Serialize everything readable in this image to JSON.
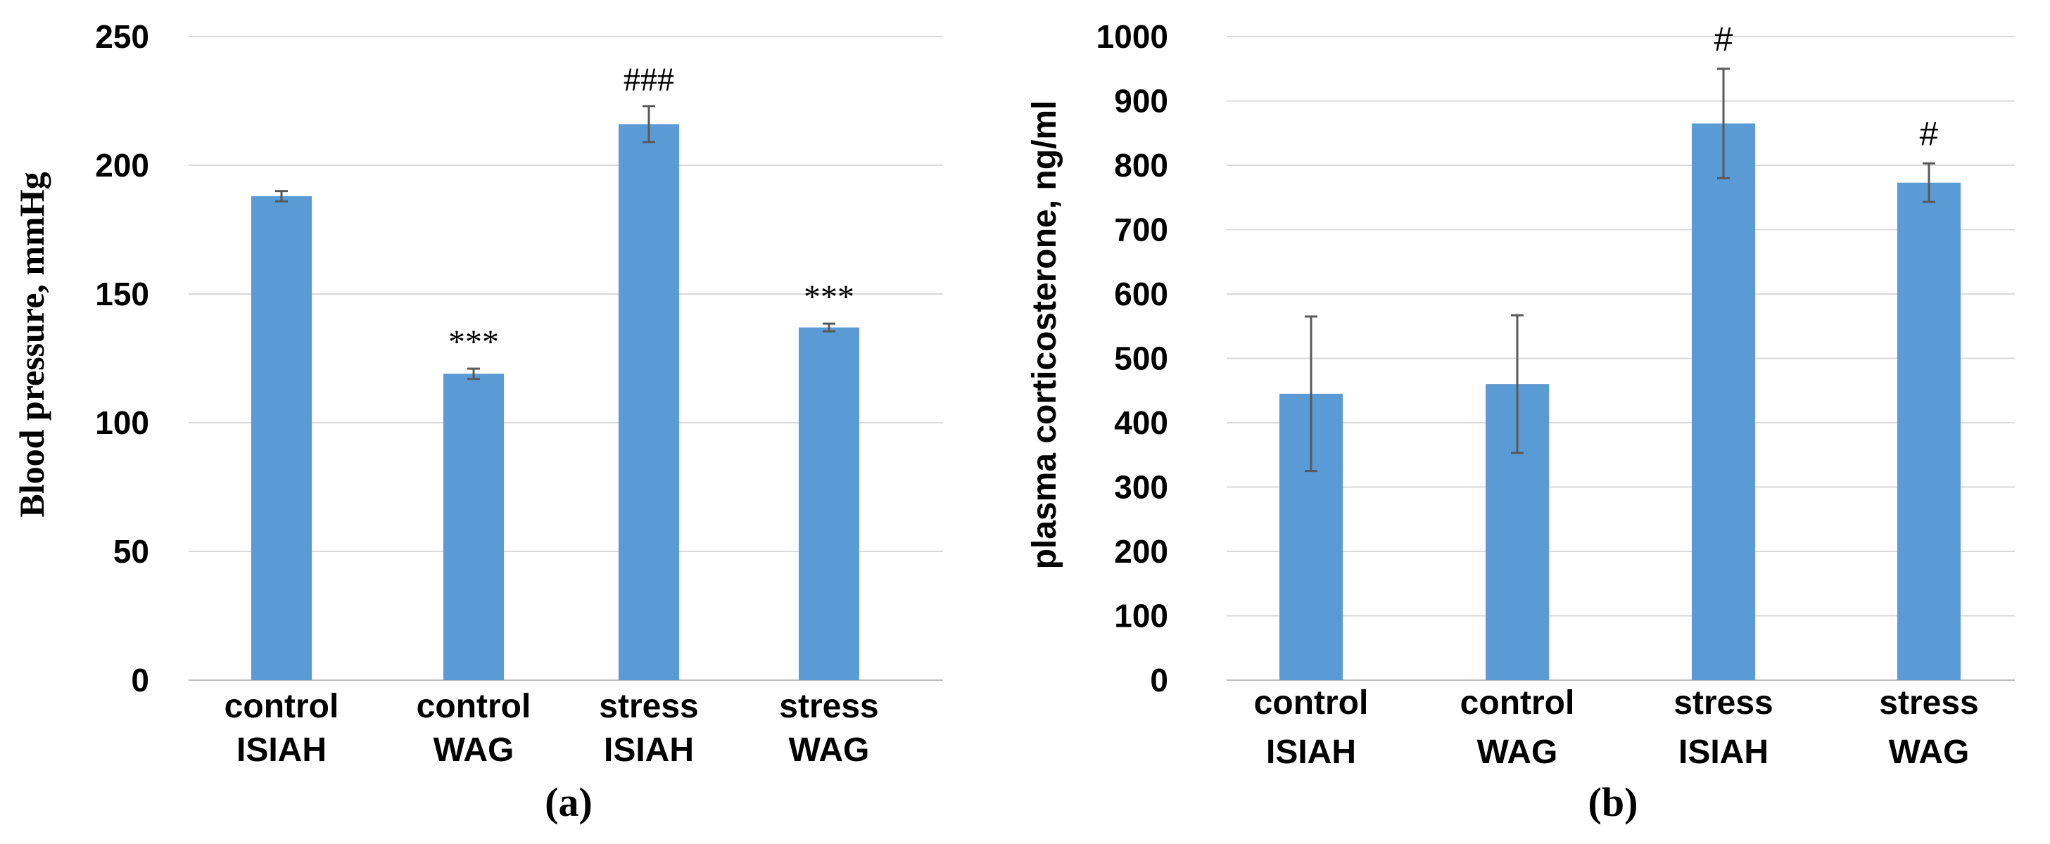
{
  "chart_data": [
    {
      "type": "bar",
      "panel_label": "(a)",
      "title": "",
      "xlabel": "",
      "ylabel": "Blood pressure, mmHg",
      "ylim": [
        0,
        250
      ],
      "yticks": [
        0,
        50,
        100,
        150,
        200,
        250
      ],
      "grid": true,
      "bar_color": "#5B9BD5",
      "categories": [
        [
          "control",
          "ISIAH"
        ],
        [
          "control",
          "WAG"
        ],
        [
          "stress",
          "ISIAH"
        ],
        [
          "stress",
          "WAG"
        ]
      ],
      "values": [
        188,
        119,
        216,
        137
      ],
      "errors": [
        2,
        2,
        7,
        1.5
      ],
      "annotations": [
        "",
        "***",
        "###",
        "***"
      ]
    },
    {
      "type": "bar",
      "panel_label": "(b)",
      "title": "",
      "xlabel": "",
      "ylabel": "plasma corticosterone,  ng/ml",
      "ylim": [
        0,
        1000
      ],
      "yticks": [
        0,
        100,
        200,
        300,
        400,
        500,
        600,
        700,
        800,
        900,
        1000
      ],
      "grid": true,
      "bar_color": "#5B9BD5",
      "categories": [
        [
          "control",
          "ISIAH"
        ],
        [
          "control",
          "WAG"
        ],
        [
          "stress",
          "ISIAH"
        ],
        [
          "stress",
          "WAG"
        ]
      ],
      "values": [
        445,
        460,
        865,
        773
      ],
      "errors": [
        120,
        107,
        85,
        30
      ],
      "annotations": [
        "",
        "",
        "#",
        "#"
      ]
    }
  ]
}
